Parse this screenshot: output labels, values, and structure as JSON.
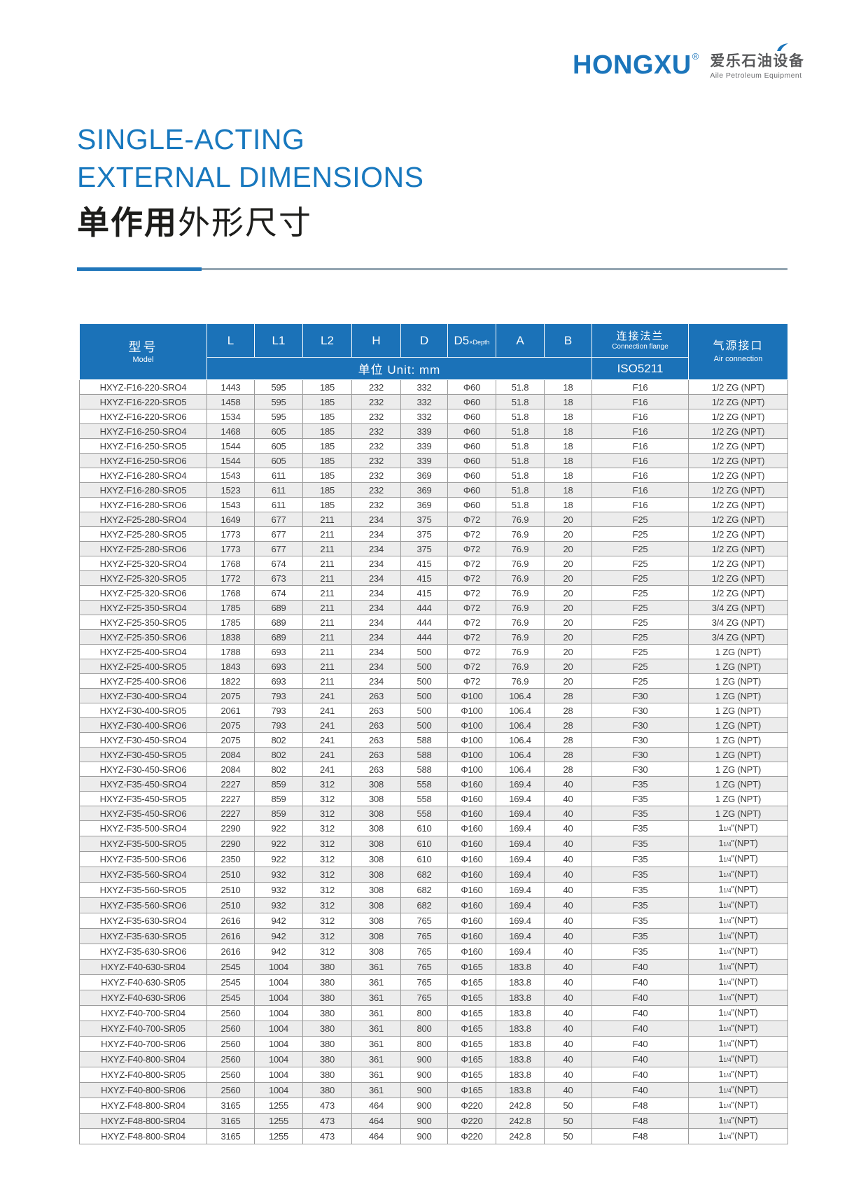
{
  "logo": {
    "brand": "HONGXU",
    "registered": "®",
    "cn": "爱乐石油设备",
    "en": "Aile Petroleum Equipment"
  },
  "title": {
    "line1": "SINGLE-ACTING",
    "line2": "EXTERNAL DIMENSIONS",
    "line3_bold": "单作用",
    "line3_rest": "外形尺寸"
  },
  "colors": {
    "header_blue": "#1b72b8",
    "title_blue": "#1878be",
    "brand_blue": "#1b75bb",
    "stripe_gray": "#ececec",
    "grid_gray": "#9b9b9b"
  },
  "table": {
    "header": {
      "model_cn": "型号",
      "model_en": "Model",
      "cols": [
        {
          "t": "L"
        },
        {
          "t": "L1"
        },
        {
          "t": "L2"
        },
        {
          "t": "H"
        },
        {
          "t": "D"
        },
        {
          "t": "D5",
          "sub": "×Depth"
        },
        {
          "t": "A"
        },
        {
          "t": "B"
        }
      ],
      "unit": "单位 Unit: mm",
      "flange_cn": "连接法兰",
      "flange_en": "Connection flange",
      "flange_std": "ISO5211",
      "air_cn": "气源接口",
      "air_en": "Air connection"
    },
    "rows": [
      [
        "HXYZ-F16-220-SRO4",
        "1443",
        "595",
        "185",
        "232",
        "332",
        "Φ60",
        "51.8",
        "18",
        "F16",
        "1/2 ZG (NPT)"
      ],
      [
        "HXYZ-F16-220-SRO5",
        "1458",
        "595",
        "185",
        "232",
        "332",
        "Φ60",
        "51.8",
        "18",
        "F16",
        "1/2 ZG (NPT)"
      ],
      [
        "HXYZ-F16-220-SRO6",
        "1534",
        "595",
        "185",
        "232",
        "332",
        "Φ60",
        "51.8",
        "18",
        "F16",
        "1/2 ZG (NPT)"
      ],
      [
        "HXYZ-F16-250-SRO4",
        "1468",
        "605",
        "185",
        "232",
        "339",
        "Φ60",
        "51.8",
        "18",
        "F16",
        "1/2 ZG (NPT)"
      ],
      [
        "HXYZ-F16-250-SRO5",
        "1544",
        "605",
        "185",
        "232",
        "339",
        "Φ60",
        "51.8",
        "18",
        "F16",
        "1/2 ZG (NPT)"
      ],
      [
        "HXYZ-F16-250-SRO6",
        "1544",
        "605",
        "185",
        "232",
        "339",
        "Φ60",
        "51.8",
        "18",
        "F16",
        "1/2 ZG (NPT)"
      ],
      [
        "HXYZ-F16-280-SRO4",
        "1543",
        "611",
        "185",
        "232",
        "369",
        "Φ60",
        "51.8",
        "18",
        "F16",
        "1/2 ZG (NPT)"
      ],
      [
        "HXYZ-F16-280-SRO5",
        "1523",
        "611",
        "185",
        "232",
        "369",
        "Φ60",
        "51.8",
        "18",
        "F16",
        "1/2 ZG (NPT)"
      ],
      [
        "HXYZ-F16-280-SRO6",
        "1543",
        "611",
        "185",
        "232",
        "369",
        "Φ60",
        "51.8",
        "18",
        "F16",
        "1/2 ZG (NPT)"
      ],
      [
        "HXYZ-F25-280-SRO4",
        "1649",
        "677",
        "211",
        "234",
        "375",
        "Φ72",
        "76.9",
        "20",
        "F25",
        "1/2 ZG (NPT)"
      ],
      [
        "HXYZ-F25-280-SRO5",
        "1773",
        "677",
        "211",
        "234",
        "375",
        "Φ72",
        "76.9",
        "20",
        "F25",
        "1/2 ZG (NPT)"
      ],
      [
        "HXYZ-F25-280-SRO6",
        "1773",
        "677",
        "211",
        "234",
        "375",
        "Φ72",
        "76.9",
        "20",
        "F25",
        "1/2 ZG (NPT)"
      ],
      [
        "HXYZ-F25-320-SRO4",
        "1768",
        "674",
        "211",
        "234",
        "415",
        "Φ72",
        "76.9",
        "20",
        "F25",
        "1/2 ZG (NPT)"
      ],
      [
        "HXYZ-F25-320-SRO5",
        "1772",
        "673",
        "211",
        "234",
        "415",
        "Φ72",
        "76.9",
        "20",
        "F25",
        "1/2 ZG (NPT)"
      ],
      [
        "HXYZ-F25-320-SRO6",
        "1768",
        "674",
        "211",
        "234",
        "415",
        "Φ72",
        "76.9",
        "20",
        "F25",
        "1/2 ZG (NPT)"
      ],
      [
        "HXYZ-F25-350-SRO4",
        "1785",
        "689",
        "211",
        "234",
        "444",
        "Φ72",
        "76.9",
        "20",
        "F25",
        "3/4 ZG (NPT)"
      ],
      [
        "HXYZ-F25-350-SRO5",
        "1785",
        "689",
        "211",
        "234",
        "444",
        "Φ72",
        "76.9",
        "20",
        "F25",
        "3/4 ZG (NPT)"
      ],
      [
        "HXYZ-F25-350-SRO6",
        "1838",
        "689",
        "211",
        "234",
        "444",
        "Φ72",
        "76.9",
        "20",
        "F25",
        "3/4 ZG (NPT)"
      ],
      [
        "HXYZ-F25-400-SRO4",
        "1788",
        "693",
        "211",
        "234",
        "500",
        "Φ72",
        "76.9",
        "20",
        "F25",
        "1 ZG (NPT)"
      ],
      [
        "HXYZ-F25-400-SRO5",
        "1843",
        "693",
        "211",
        "234",
        "500",
        "Φ72",
        "76.9",
        "20",
        "F25",
        "1 ZG (NPT)"
      ],
      [
        "HXYZ-F25-400-SRO6",
        "1822",
        "693",
        "211",
        "234",
        "500",
        "Φ72",
        "76.9",
        "20",
        "F25",
        "1 ZG (NPT)"
      ],
      [
        "HXYZ-F30-400-SRO4",
        "2075",
        "793",
        "241",
        "263",
        "500",
        "Φ100",
        "106.4",
        "28",
        "F30",
        "1 ZG (NPT)"
      ],
      [
        "HXYZ-F30-400-SRO5",
        "2061",
        "793",
        "241",
        "263",
        "500",
        "Φ100",
        "106.4",
        "28",
        "F30",
        "1 ZG (NPT)"
      ],
      [
        "HXYZ-F30-400-SRO6",
        "2075",
        "793",
        "241",
        "263",
        "500",
        "Φ100",
        "106.4",
        "28",
        "F30",
        "1 ZG (NPT)"
      ],
      [
        "HXYZ-F30-450-SRO4",
        "2075",
        "802",
        "241",
        "263",
        "588",
        "Φ100",
        "106.4",
        "28",
        "F30",
        "1 ZG (NPT)"
      ],
      [
        "HXYZ-F30-450-SRO5",
        "2084",
        "802",
        "241",
        "263",
        "588",
        "Φ100",
        "106.4",
        "28",
        "F30",
        "1 ZG (NPT)"
      ],
      [
        "HXYZ-F30-450-SRO6",
        "2084",
        "802",
        "241",
        "263",
        "588",
        "Φ100",
        "106.4",
        "28",
        "F30",
        "1 ZG (NPT)"
      ],
      [
        "HXYZ-F35-450-SRO4",
        "2227",
        "859",
        "312",
        "308",
        "558",
        "Φ160",
        "169.4",
        "40",
        "F35",
        "1 ZG (NPT)"
      ],
      [
        "HXYZ-F35-450-SRO5",
        "2227",
        "859",
        "312",
        "308",
        "558",
        "Φ160",
        "169.4",
        "40",
        "F35",
        "1 ZG (NPT)"
      ],
      [
        "HXYZ-F35-450-SRO6",
        "2227",
        "859",
        "312",
        "308",
        "558",
        "Φ160",
        "169.4",
        "40",
        "F35",
        "1 ZG (NPT)"
      ],
      [
        "HXYZ-F35-500-SRO4",
        "2290",
        "922",
        "312",
        "308",
        "610",
        "Φ160",
        "169.4",
        "40",
        "F35",
        "1 1/4\"(NPT)"
      ],
      [
        "HXYZ-F35-500-SRO5",
        "2290",
        "922",
        "312",
        "308",
        "610",
        "Φ160",
        "169.4",
        "40",
        "F35",
        "1 1/4\"(NPT)"
      ],
      [
        "HXYZ-F35-500-SRO6",
        "2350",
        "922",
        "312",
        "308",
        "610",
        "Φ160",
        "169.4",
        "40",
        "F35",
        "1 1/4\"(NPT)"
      ],
      [
        "HXYZ-F35-560-SRO4",
        "2510",
        "932",
        "312",
        "308",
        "682",
        "Φ160",
        "169.4",
        "40",
        "F35",
        "1 1/4\"(NPT)"
      ],
      [
        "HXYZ-F35-560-SRO5",
        "2510",
        "932",
        "312",
        "308",
        "682",
        "Φ160",
        "169.4",
        "40",
        "F35",
        "1 1/4\"(NPT)"
      ],
      [
        "HXYZ-F35-560-SRO6",
        "2510",
        "932",
        "312",
        "308",
        "682",
        "Φ160",
        "169.4",
        "40",
        "F35",
        "1 1/4\"(NPT)"
      ],
      [
        "HXYZ-F35-630-SRO4",
        "2616",
        "942",
        "312",
        "308",
        "765",
        "Φ160",
        "169.4",
        "40",
        "F35",
        "1 1/4\"(NPT)"
      ],
      [
        "HXYZ-F35-630-SRO5",
        "2616",
        "942",
        "312",
        "308",
        "765",
        "Φ160",
        "169.4",
        "40",
        "F35",
        "1 1/4\"(NPT)"
      ],
      [
        "HXYZ-F35-630-SRO6",
        "2616",
        "942",
        "312",
        "308",
        "765",
        "Φ160",
        "169.4",
        "40",
        "F35",
        "1 1/4\"(NPT)"
      ],
      [
        "HXYZ-F40-630-SR04",
        "2545",
        "1004",
        "380",
        "361",
        "765",
        "Φ165",
        "183.8",
        "40",
        "F40",
        "1 1/4\"(NPT)"
      ],
      [
        "HXYZ-F40-630-SR05",
        "2545",
        "1004",
        "380",
        "361",
        "765",
        "Φ165",
        "183.8",
        "40",
        "F40",
        "1 1/4\"(NPT)"
      ],
      [
        "HXYZ-F40-630-SR06",
        "2545",
        "1004",
        "380",
        "361",
        "765",
        "Φ165",
        "183.8",
        "40",
        "F40",
        "1 1/4\"(NPT)"
      ],
      [
        "HXYZ-F40-700-SR04",
        "2560",
        "1004",
        "380",
        "361",
        "800",
        "Φ165",
        "183.8",
        "40",
        "F40",
        "1 1/4\"(NPT)"
      ],
      [
        "HXYZ-F40-700-SR05",
        "2560",
        "1004",
        "380",
        "361",
        "800",
        "Φ165",
        "183.8",
        "40",
        "F40",
        "1 1/4\"(NPT)"
      ],
      [
        "HXYZ-F40-700-SR06",
        "2560",
        "1004",
        "380",
        "361",
        "800",
        "Φ165",
        "183.8",
        "40",
        "F40",
        "1 1/4\"(NPT)"
      ],
      [
        "HXYZ-F40-800-SR04",
        "2560",
        "1004",
        "380",
        "361",
        "900",
        "Φ165",
        "183.8",
        "40",
        "F40",
        "1 1/4\"(NPT)"
      ],
      [
        "HXYZ-F40-800-SR05",
        "2560",
        "1004",
        "380",
        "361",
        "900",
        "Φ165",
        "183.8",
        "40",
        "F40",
        "1 1/4\"(NPT)"
      ],
      [
        "HXYZ-F40-800-SR06",
        "2560",
        "1004",
        "380",
        "361",
        "900",
        "Φ165",
        "183.8",
        "40",
        "F40",
        "1 1/4\"(NPT)"
      ],
      [
        "HXYZ-F48-800-SR04",
        "3165",
        "1255",
        "473",
        "464",
        "900",
        "Φ220",
        "242.8",
        "50",
        "F48",
        "1 1/4\"(NPT)"
      ],
      [
        "HXYZ-F48-800-SR04",
        "3165",
        "1255",
        "473",
        "464",
        "900",
        "Φ220",
        "242.8",
        "50",
        "F48",
        "1 1/4\"(NPT)"
      ],
      [
        "HXYZ-F48-800-SR04",
        "3165",
        "1255",
        "473",
        "464",
        "900",
        "Φ220",
        "242.8",
        "50",
        "F48",
        "1 1/4\"(NPT)"
      ]
    ]
  }
}
